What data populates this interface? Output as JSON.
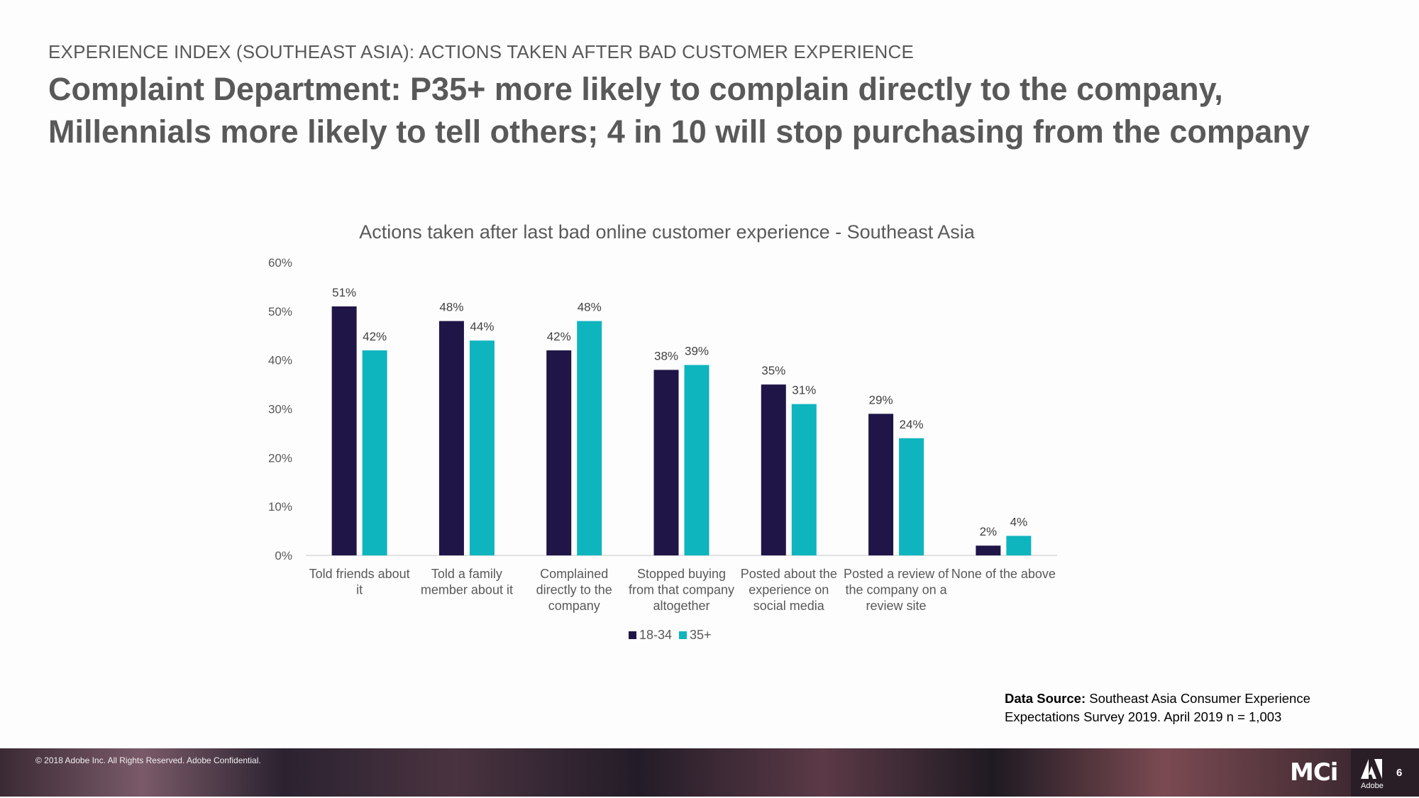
{
  "header": {
    "kicker": "EXPERIENCE INDEX (SOUTHEAST ASIA): ACTIONS TAKEN AFTER BAD CUSTOMER EXPERIENCE",
    "headline": "Complaint Department: P35+ more likely to complain directly to the company, Millennials more likely to tell others; 4 in 10 will stop purchasing from the company"
  },
  "chart_data": {
    "type": "bar",
    "title": "Actions taken after last bad online customer experience - Southeast Asia",
    "categories": [
      [
        "Told friends about",
        "it"
      ],
      [
        "Told a family",
        "member about it"
      ],
      [
        "Complained",
        "directly to the",
        "company"
      ],
      [
        "Stopped buying",
        "from that company",
        "altogether"
      ],
      [
        "Posted about the",
        "experience on",
        "social media"
      ],
      [
        "Posted a review of",
        "the company on a",
        "review site"
      ],
      [
        "None of the above"
      ]
    ],
    "series": [
      {
        "name": "18-34",
        "values": [
          51,
          48,
          42,
          38,
          35,
          29,
          2
        ],
        "color": "#201547"
      },
      {
        "name": "35+",
        "values": [
          42,
          44,
          48,
          39,
          31,
          24,
          4
        ],
        "color": "#0fb5be"
      }
    ],
    "value_suffix": "%",
    "yticks": [
      "0%",
      "10%",
      "20%",
      "30%",
      "40%",
      "50%",
      "60%"
    ],
    "ylim": [
      0,
      60
    ],
    "legend_position": "bottom",
    "grid": false
  },
  "source": {
    "label": "Data Source:",
    "text": " Southeast Asia Consumer Experience Expectations Survey 2019. April 2019 n = 1,003"
  },
  "footer": {
    "copyright": "© 2018 Adobe Inc.  All Rights Reserved.  Adobe Confidential.",
    "logo_text": "MCi",
    "brand": "Adobe",
    "page_number": "6"
  }
}
